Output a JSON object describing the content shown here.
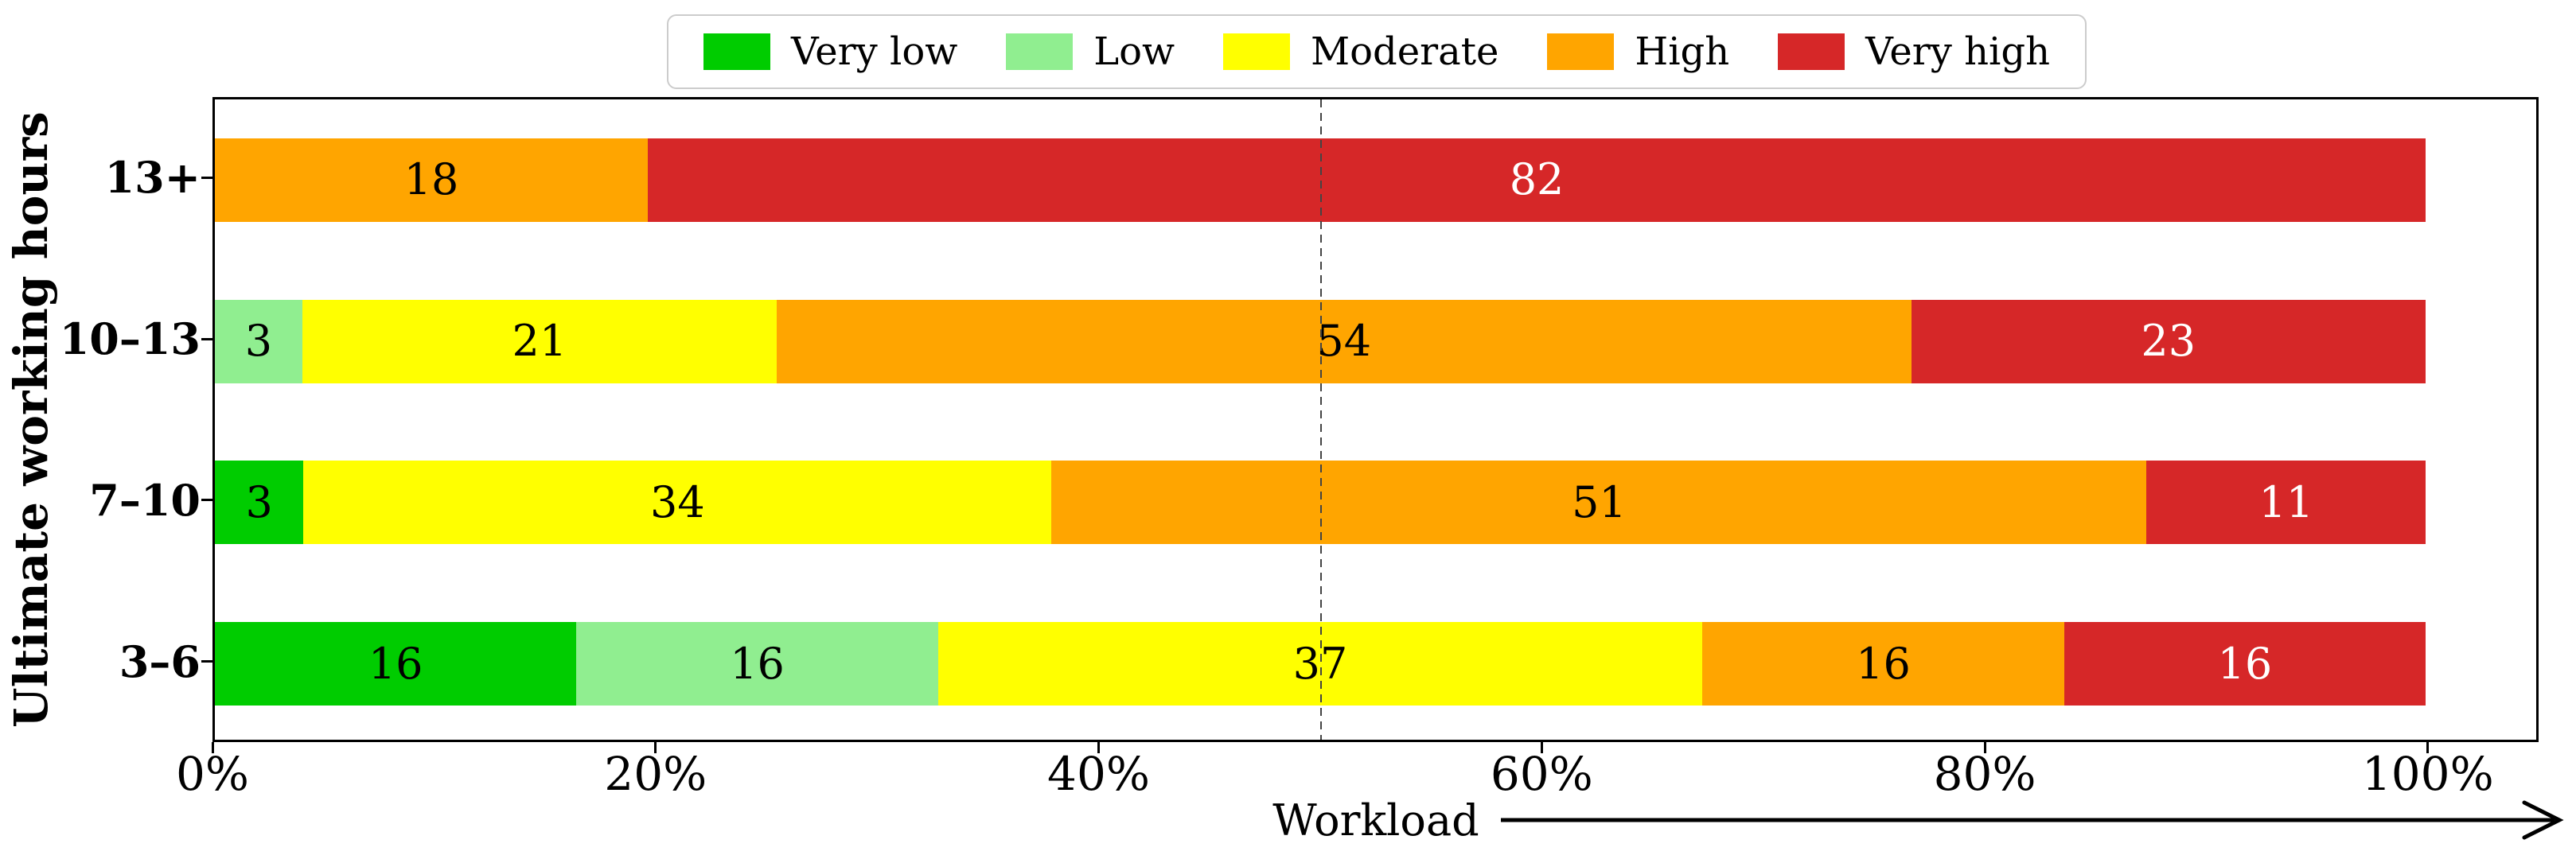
{
  "chart_data": {
    "type": "bar",
    "orientation": "horizontal",
    "stacked": true,
    "normalized_rows": true,
    "title": "",
    "xlabel": "Workload",
    "ylabel": "Ultimate working hours",
    "categories": [
      "13+",
      "10–13",
      "7–10",
      "3–6"
    ],
    "series": [
      {
        "name": "Very low",
        "color": "#00cc00",
        "label_color": "#000000",
        "values": [
          0,
          0,
          3,
          16
        ]
      },
      {
        "name": "Low",
        "color": "#90ee90",
        "label_color": "#000000",
        "values": [
          0,
          3,
          0,
          16
        ]
      },
      {
        "name": "Moderate",
        "color": "#ffff00",
        "label_color": "#000000",
        "values": [
          0,
          21,
          34,
          37
        ]
      },
      {
        "name": "High",
        "color": "#ffa500",
        "label_color": "#000000",
        "values": [
          18,
          54,
          51,
          16
        ]
      },
      {
        "name": "Very high",
        "color": "#d62728",
        "label_color": "#ffffff",
        "values": [
          82,
          23,
          11,
          16
        ]
      }
    ],
    "x_ticks": [
      {
        "value": 0,
        "label": "0%"
      },
      {
        "value": 20,
        "label": "20%"
      },
      {
        "value": 40,
        "label": "40%"
      },
      {
        "value": 60,
        "label": "60%"
      },
      {
        "value": 80,
        "label": "80%"
      },
      {
        "value": 100,
        "label": "100%"
      }
    ],
    "xlim": [
      0,
      105
    ],
    "bar_span_percent": 100,
    "reference_line_x": 50,
    "grid": "off",
    "legend_position": "top",
    "axis_color": "#000000",
    "reference_line_color": "#444444"
  }
}
